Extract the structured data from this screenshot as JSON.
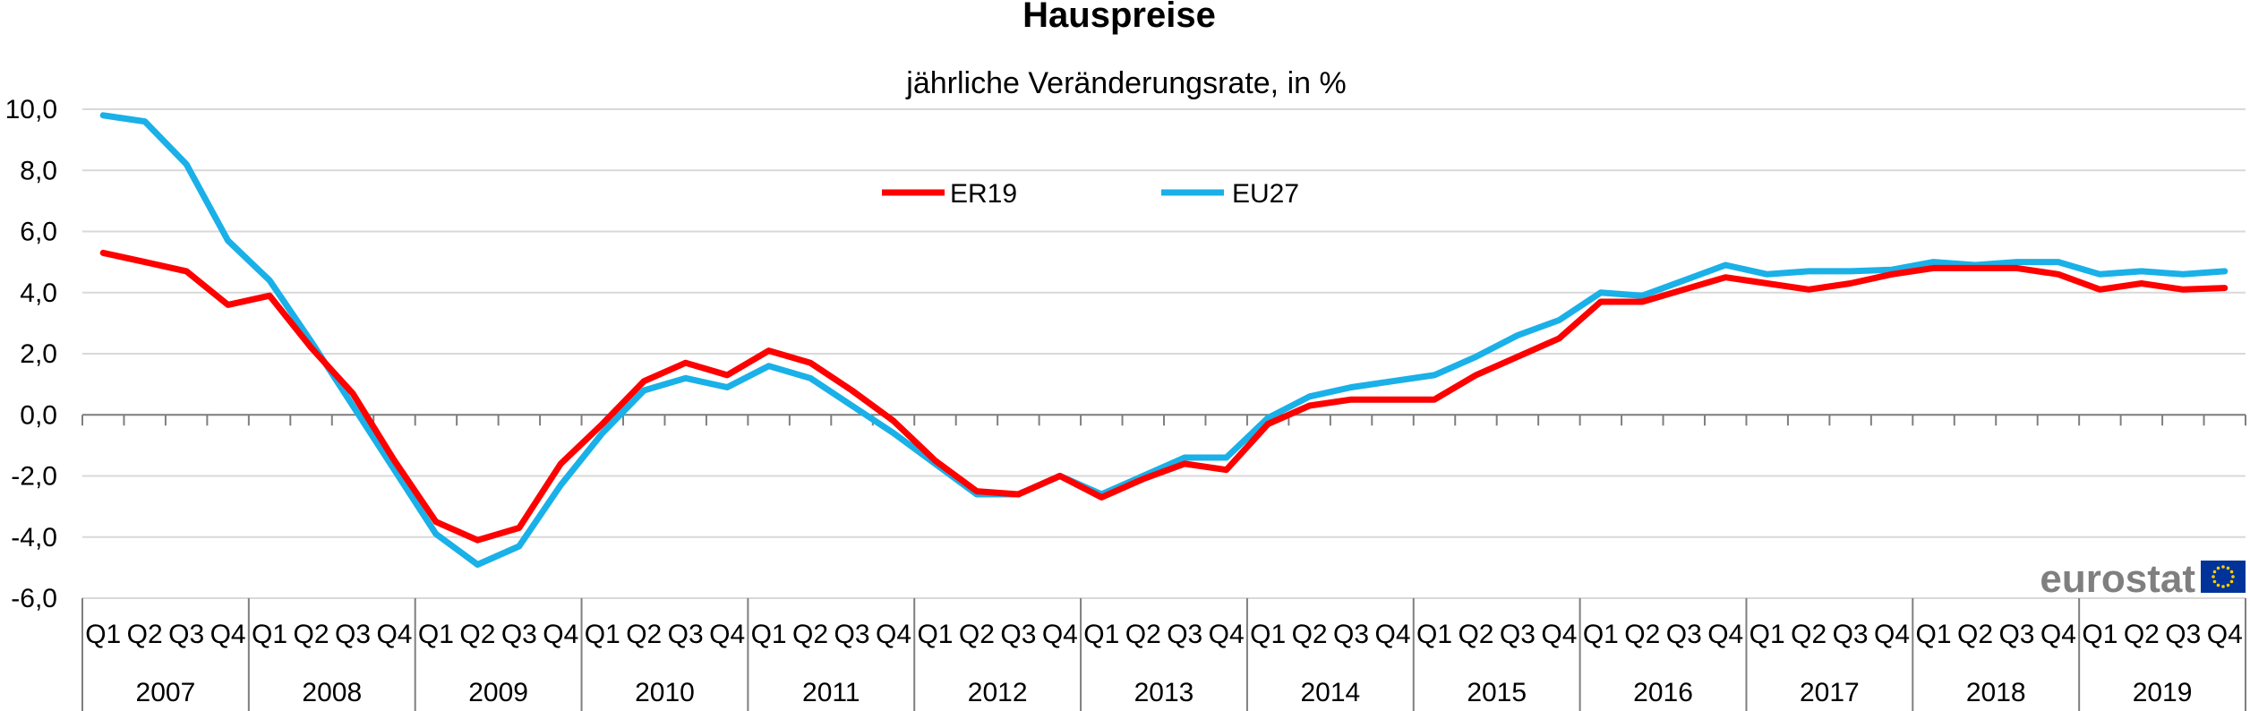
{
  "chart_data": {
    "type": "line",
    "title": "Hauspreise",
    "subtitle": "jährliche Veränderungsrate, in %",
    "ylim": [
      -6,
      10
    ],
    "yticks": [
      "10,0",
      "8,0",
      "6,0",
      "4,0",
      "2,0",
      "0,0",
      "-2,0",
      "-4,0",
      "-6,0"
    ],
    "ytick_values": [
      10,
      8,
      6,
      4,
      2,
      0,
      -2,
      -4,
      -6
    ],
    "quarters": [
      "Q1",
      "Q2",
      "Q3",
      "Q4"
    ],
    "years": [
      "2007",
      "2008",
      "2009",
      "2010",
      "2011",
      "2012",
      "2013",
      "2014",
      "2015",
      "2016",
      "2017",
      "2018",
      "2019"
    ],
    "grid": "horizontal",
    "legend_position": "top-center",
    "series": [
      {
        "name": "ER19",
        "color": "#ff0000",
        "values": [
          5.3,
          5.0,
          4.7,
          3.6,
          3.9,
          2.2,
          0.7,
          -1.5,
          -3.5,
          -4.1,
          -3.7,
          -1.6,
          -0.3,
          1.1,
          1.7,
          1.3,
          2.1,
          1.7,
          0.8,
          -0.2,
          -1.5,
          -2.5,
          -2.6,
          -2.0,
          -2.7,
          -2.1,
          -1.6,
          -1.8,
          -0.3,
          0.3,
          0.5,
          0.5,
          0.5,
          1.3,
          1.9,
          2.5,
          3.7,
          3.7,
          4.1,
          4.5,
          4.3,
          4.1,
          4.3,
          4.6,
          4.8,
          4.8,
          4.8,
          4.6,
          4.1,
          4.3,
          4.1,
          4.15
        ]
      },
      {
        "name": "EU27",
        "color": "#1ab0e8",
        "values": [
          9.8,
          9.6,
          8.2,
          5.7,
          4.4,
          2.4,
          0.3,
          -1.8,
          -3.9,
          -4.9,
          -4.3,
          -2.3,
          -0.6,
          0.8,
          1.2,
          0.9,
          1.6,
          1.2,
          0.3,
          -0.6,
          -1.6,
          -2.6,
          -2.6,
          -2.0,
          -2.6,
          -2.0,
          -1.4,
          -1.4,
          -0.1,
          0.6,
          0.9,
          1.1,
          1.3,
          1.9,
          2.6,
          3.1,
          4.0,
          3.9,
          4.4,
          4.9,
          4.6,
          4.7,
          4.7,
          4.75,
          5.0,
          4.9,
          5.0,
          5.0,
          4.6,
          4.7,
          4.6,
          4.7
        ]
      }
    ]
  },
  "brand": {
    "name": "eurostat",
    "text_color": "#7f7f7f",
    "flag_color": "#003399",
    "star_color": "#ffcc00"
  }
}
